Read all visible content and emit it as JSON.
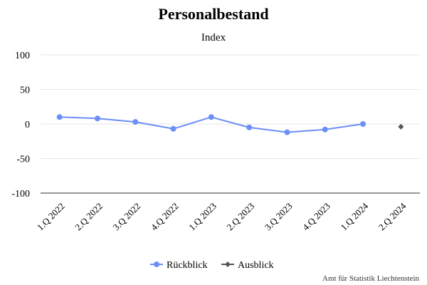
{
  "chart_data": {
    "type": "line",
    "title": "Personalbestand",
    "subtitle": "Index",
    "categories": [
      "1.Q 2022",
      "2.Q 2022",
      "3.Q 2022",
      "4.Q 2022",
      "1.Q 2023",
      "2.Q 2023",
      "3.Q 2023",
      "4.Q 2023",
      "1.Q 2024",
      "2.Q 2024"
    ],
    "ylim": [
      -100,
      100
    ],
    "yticks": [
      100,
      50,
      0,
      -50,
      -100
    ],
    "grid": true,
    "legend_position": "bottom-center",
    "series": [
      {
        "name": "Rückblick",
        "color": "#6b8ff7",
        "marker": "circle",
        "values": [
          10,
          8,
          3,
          -7,
          10,
          -5,
          -12,
          -8,
          0,
          null
        ]
      },
      {
        "name": "Ausblick",
        "color": "#555555",
        "marker": "diamond",
        "values": [
          null,
          null,
          null,
          null,
          null,
          null,
          null,
          null,
          null,
          -4
        ]
      }
    ],
    "credit": "Amt für Statistik Liechtenstein"
  }
}
